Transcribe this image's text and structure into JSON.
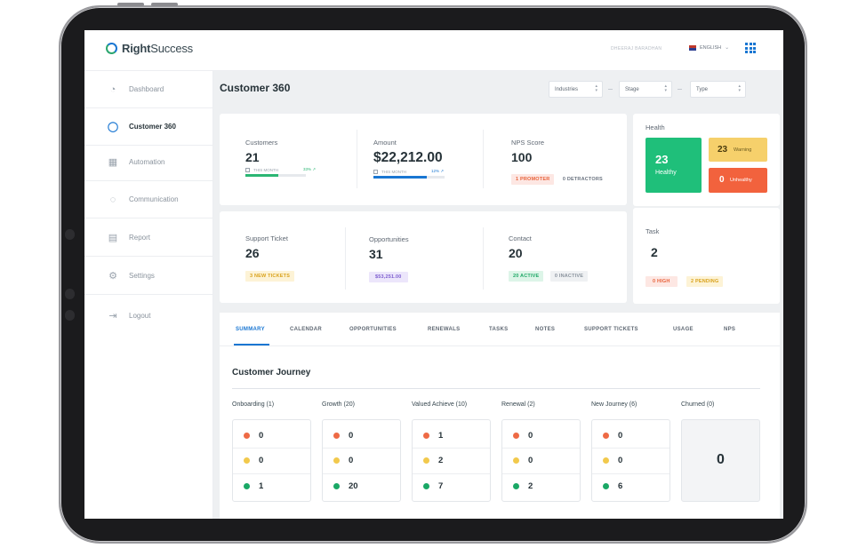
{
  "header": {
    "logo_bold": "Right",
    "logo_rest": "Success",
    "user_name": "DHEERAJ BARADHAN",
    "language": "ENGLISH",
    "chevron": "⌄"
  },
  "sidebar": {
    "items": [
      {
        "label": "Dashboard",
        "icon": "speedometer-icon",
        "glyph": "◔"
      },
      {
        "label": "Customer 360",
        "icon": "user-icon",
        "glyph": "👤"
      },
      {
        "label": "Automation",
        "icon": "apps-grid-icon",
        "glyph": "▦"
      },
      {
        "label": "Communication",
        "icon": "chat-bubble-icon",
        "glyph": "◌"
      },
      {
        "label": "Report",
        "icon": "document-icon",
        "glyph": "▤"
      },
      {
        "label": "Settings",
        "icon": "gear-icon",
        "glyph": "⚙"
      },
      {
        "label": "Logout",
        "icon": "logout-icon",
        "glyph": "⇥"
      }
    ]
  },
  "page": {
    "title": "Customer 360"
  },
  "filters": {
    "industries": "Industries",
    "stage": "Stage",
    "type": "Type",
    "arrow": "▲▼"
  },
  "summary": {
    "customers": {
      "label": "Customers",
      "value": "21",
      "period": "THIS MONTH",
      "pct": "33% ↗",
      "progress": 0.55
    },
    "amount": {
      "label": "Amount",
      "value": "$22,212.00",
      "period": "THIS MONTH",
      "pct": "12% ↗",
      "progress": 0.75
    },
    "nps": {
      "label": "NPS Score",
      "value": "100",
      "promoter": "1 PROMOTER",
      "detractors": "0 DETRACTORS"
    },
    "support": {
      "label": "Support Ticket",
      "value": "26",
      "tag": "3 NEW TICKETS"
    },
    "opportunities": {
      "label": "Opportunities",
      "value": "31",
      "tag": "$53,251.00"
    },
    "contact": {
      "label": "Contact",
      "value": "20",
      "active": "20 ACTIVE",
      "inactive": "0 INACTIVE"
    }
  },
  "health": {
    "title": "Health",
    "healthy_value": "23",
    "healthy_label": "Healthy",
    "warning_value": "23",
    "warning_label": "Warning",
    "unhealthy_value": "0",
    "unhealthy_label": "Unhealthy",
    "colors": {
      "healthy": "#1fbf7a",
      "warning": "#f6d06b",
      "unhealthy": "#f2623d"
    }
  },
  "task": {
    "title": "Task",
    "value": "2",
    "high": "0 HIGH",
    "pending": "2 PENDING"
  },
  "tabs": [
    "SUMMARY",
    "CALENDAR",
    "OPPORTUNITIES",
    "RENEWALS",
    "TASKS",
    "NOTES",
    "SUPPORT TICKETS",
    "USAGE",
    "NPS"
  ],
  "journey": {
    "title": "Customer Journey",
    "stages": [
      {
        "label": "Onboarding (1)",
        "red": "0",
        "yellow": "0",
        "green": "1"
      },
      {
        "label": "Growth (20)",
        "red": "0",
        "yellow": "0",
        "green": "20"
      },
      {
        "label": "Valued Achieve (10)",
        "red": "1",
        "yellow": "2",
        "green": "7"
      },
      {
        "label": "Renewal (2)",
        "red": "0",
        "yellow": "0",
        "green": "2"
      },
      {
        "label": "New Journey (6)",
        "red": "0",
        "yellow": "0",
        "green": "6"
      },
      {
        "label": "Churned (0)",
        "total": "0"
      }
    ],
    "dot_colors": {
      "red": "#ee6a45",
      "yellow": "#f2c94c",
      "green": "#1aa866"
    }
  }
}
